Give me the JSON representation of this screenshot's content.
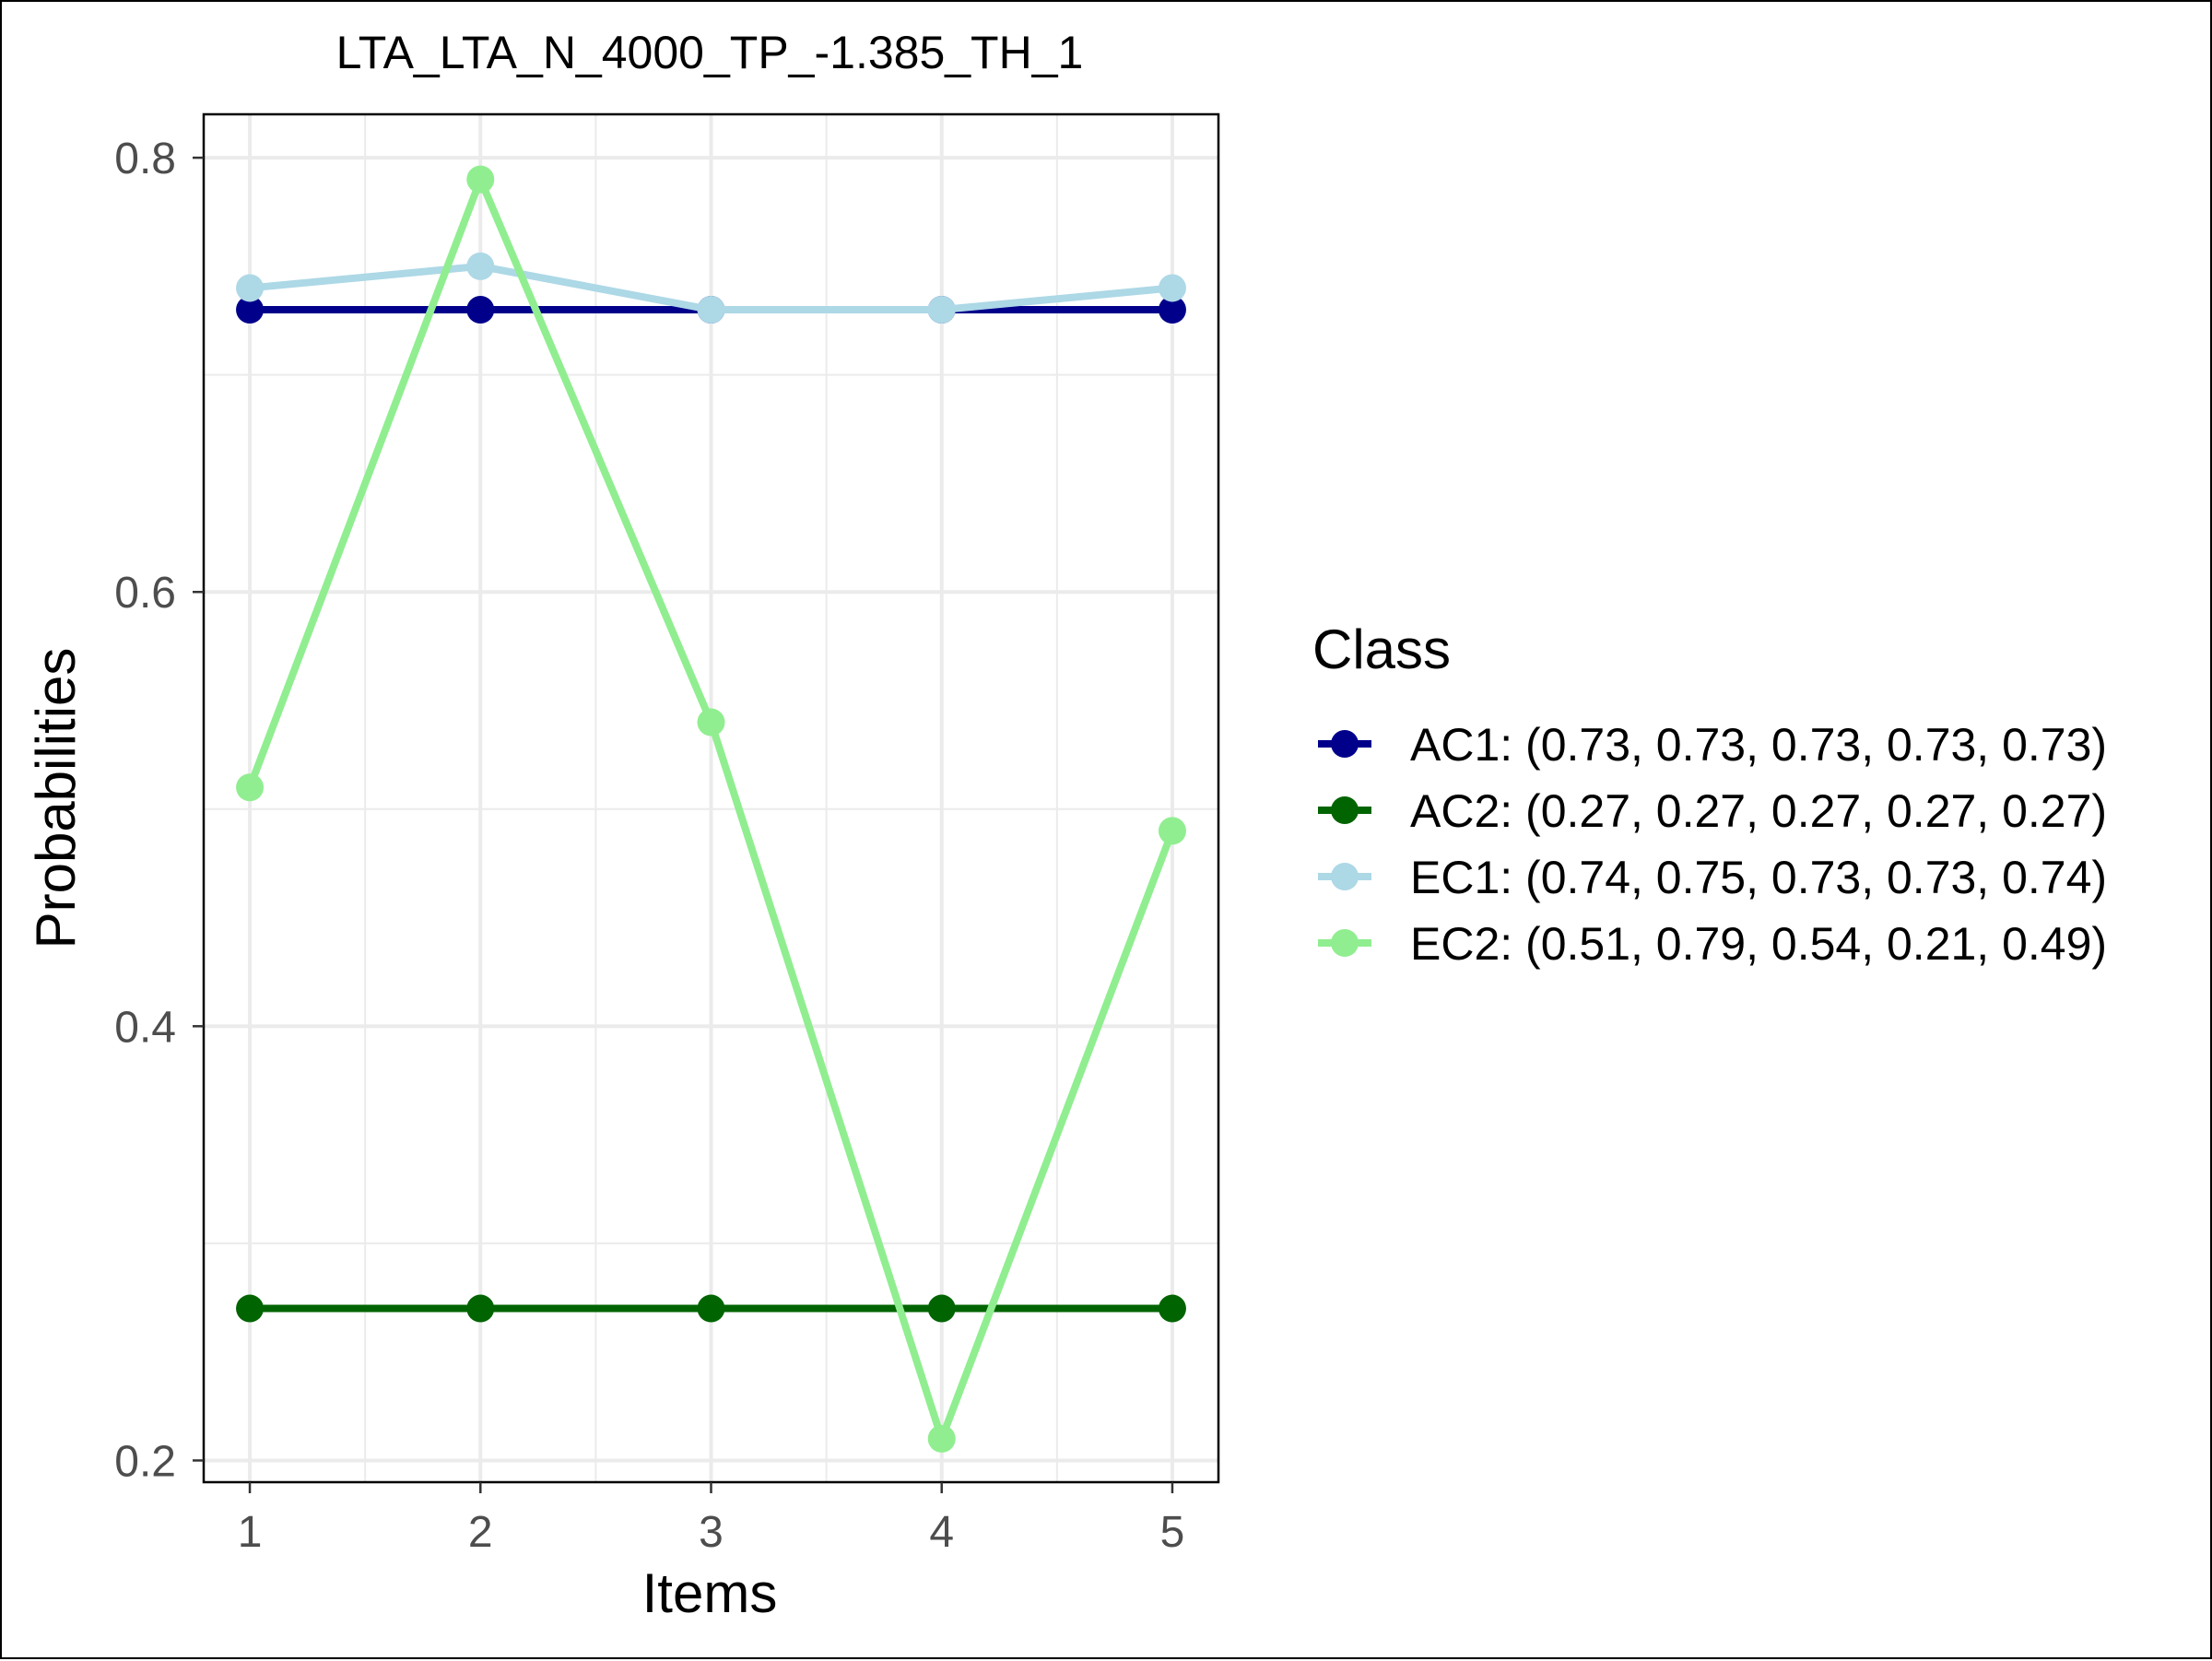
{
  "chart_data": {
    "type": "line",
    "title": "LTA_LTA_N_4000_TP_-1.385_TH_1",
    "xlabel": "Items",
    "ylabel": "Probabilities",
    "x": [
      1,
      2,
      3,
      4,
      5
    ],
    "xlim": [
      0.8,
      5.2
    ],
    "ylim": [
      0.19,
      0.82
    ],
    "y_ticks": [
      0.2,
      0.4,
      0.6,
      0.8
    ],
    "y_tick_labels": [
      "0.2",
      "0.4",
      "0.6",
      "0.8"
    ],
    "x_tick_labels": [
      "1",
      "2",
      "3",
      "4",
      "5"
    ],
    "grid": true,
    "legend": {
      "title": "Class",
      "position": "right",
      "entries": [
        "AC1: (0.73, 0.73, 0.73, 0.73, 0.73)",
        "AC2: (0.27, 0.27, 0.27, 0.27, 0.27)",
        "EC1: (0.74, 0.75, 0.73, 0.73, 0.74)",
        "EC2: (0.51, 0.79, 0.54, 0.21, 0.49)"
      ]
    },
    "series": [
      {
        "name": "AC1",
        "color": "#00008B",
        "values": [
          0.73,
          0.73,
          0.73,
          0.73,
          0.73
        ]
      },
      {
        "name": "AC2",
        "color": "#006400",
        "values": [
          0.27,
          0.27,
          0.27,
          0.27,
          0.27
        ]
      },
      {
        "name": "EC1",
        "color": "#ADD8E6",
        "values": [
          0.74,
          0.75,
          0.73,
          0.73,
          0.74
        ]
      },
      {
        "name": "EC2",
        "color": "#90EE90",
        "values": [
          0.51,
          0.79,
          0.54,
          0.21,
          0.49
        ]
      }
    ]
  }
}
